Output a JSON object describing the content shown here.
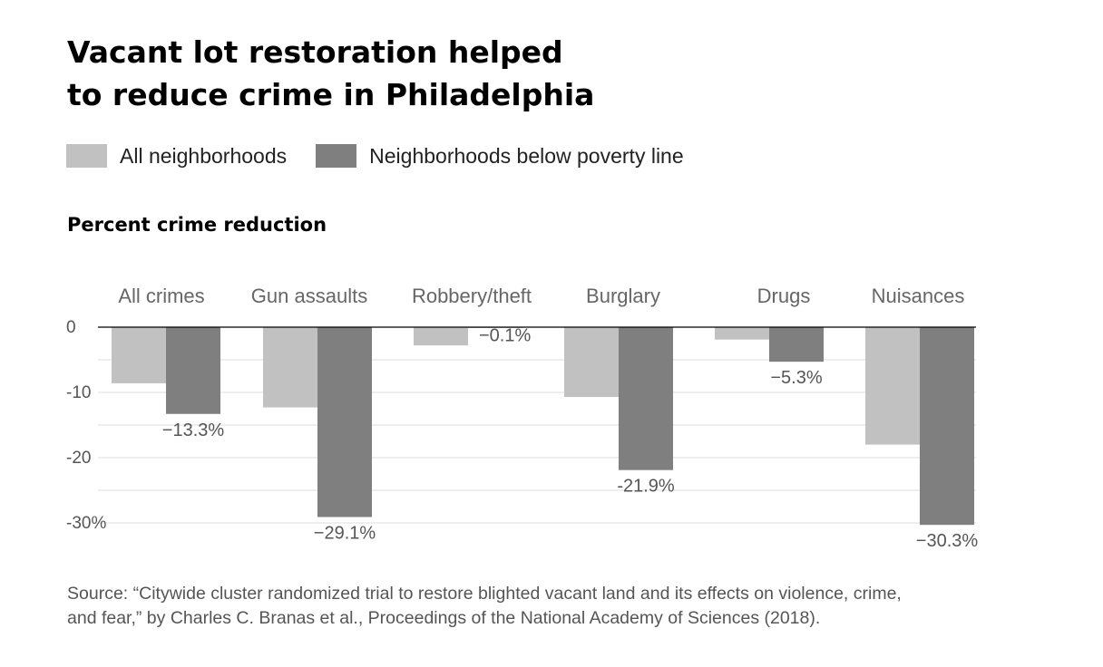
{
  "header": {
    "title_line1": "Vacant lot restoration helped",
    "title_line2": "to reduce crime in Philadelphia"
  },
  "legend": {
    "items": [
      {
        "label": "All neighborhoods",
        "color": "#c1c1c1"
      },
      {
        "label": "Neighborhoods below poverty line",
        "color": "#7f7f7f"
      }
    ]
  },
  "subtitle": "Percent crime reduction",
  "chart_data": {
    "type": "bar",
    "title": "Vacant lot restoration helped to reduce crime in Philadelphia",
    "ylabel": "Percent crime reduction",
    "categories": [
      "All crimes",
      "Gun assaults",
      "Robbery/theft",
      "Burglary",
      "Drugs",
      "Nuisances"
    ],
    "series": [
      {
        "name": "All neighborhoods",
        "color": "#c1c1c1",
        "values": [
          -8.6,
          -12.3,
          -2.8,
          -10.7,
          -1.9,
          -18.0
        ]
      },
      {
        "name": "Neighborhoods below poverty line",
        "color": "#7f7f7f",
        "values": [
          -13.3,
          -29.1,
          -0.1,
          -21.9,
          -5.3,
          -30.3
        ]
      }
    ],
    "data_labels": [
      "−13.3%",
      "−29.1%",
      "−0.1%",
      "-21.9%",
      "−5.3%",
      "−30.3%"
    ],
    "y_ticks": [
      {
        "value": 0,
        "label": "0"
      },
      {
        "value": -10,
        "label": "-10"
      },
      {
        "value": -20,
        "label": "-20"
      },
      {
        "value": -30,
        "label": "-30%"
      }
    ],
    "ylim": [
      -30.3,
      0
    ],
    "grid": true,
    "legend_position": "top"
  },
  "source": {
    "line1": "Source: “Citywide cluster randomized trial to restore blighted vacant land and its effects on violence, crime,",
    "line2": "and fear,” by Charles C. Branas et al., Proceedings of the National Academy of Sciences (2018)."
  }
}
